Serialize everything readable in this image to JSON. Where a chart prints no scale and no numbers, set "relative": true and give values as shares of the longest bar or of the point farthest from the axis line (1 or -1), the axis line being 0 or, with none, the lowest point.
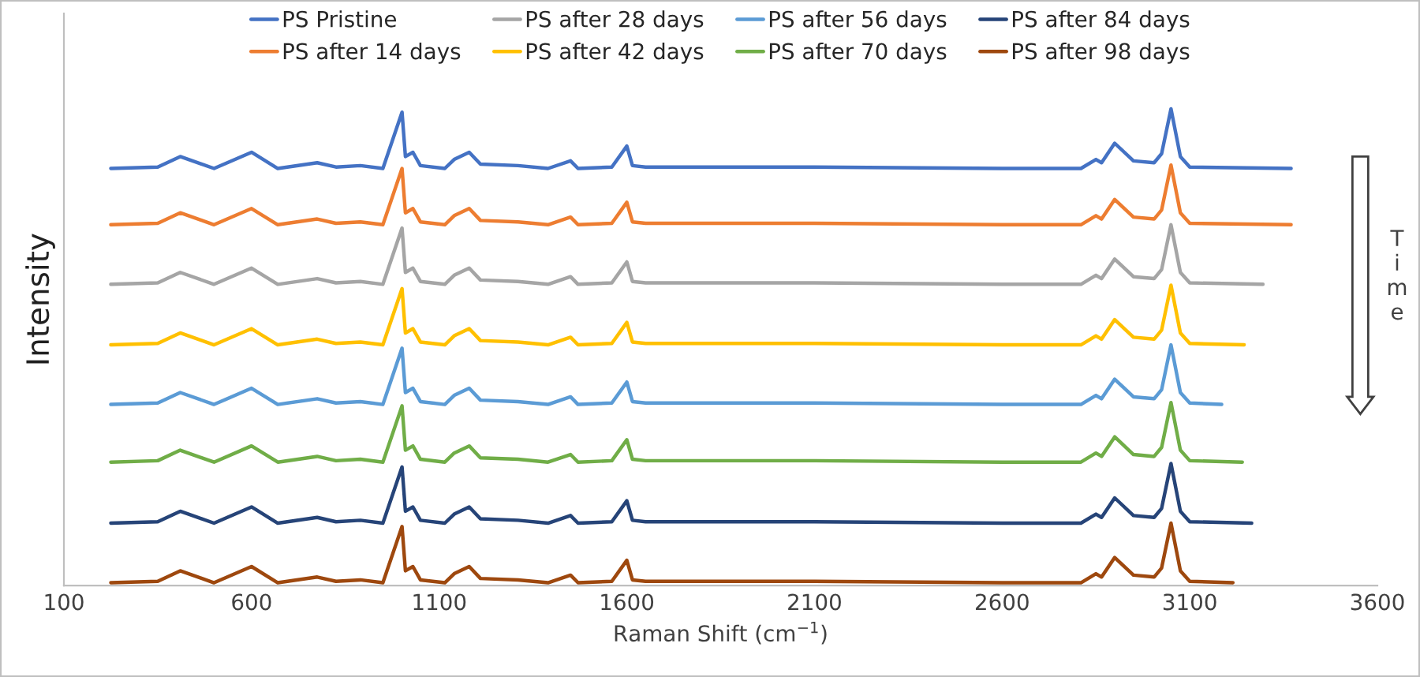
{
  "chart_data": {
    "type": "line",
    "relative": true,
    "xlabel": "Raman Shift (cm$^{−1}$)",
    "ylabel": "Intensity",
    "annotations": [
      "Time"
    ],
    "xlim": [
      100,
      3600
    ],
    "xticks": [
      100,
      600,
      1100,
      1600,
      2100,
      2600,
      3100,
      3600
    ],
    "grid": false,
    "legend": "top",
    "marker": "none",
    "line_style": "solid",
    "series": [
      {
        "name": "PS Pristine",
        "color": "#4472c4",
        "x": [
          225,
          350,
          410,
          500,
          600,
          670,
          775,
          825,
          890,
          950,
          1001,
          1010,
          1030,
          1050,
          1115,
          1140,
          1180,
          1210,
          1310,
          1390,
          1450,
          1470,
          1560,
          1600,
          1615,
          1650,
          2100,
          2600,
          2810,
          2850,
          2865,
          2900,
          2950,
          3005,
          3025,
          3050,
          3075,
          3100,
          3370
        ],
        "values": [
          0.875,
          0.878,
          0.9,
          0.875,
          0.909,
          0.875,
          0.887,
          0.878,
          0.881,
          0.875,
          0.993,
          0.9,
          0.909,
          0.881,
          0.875,
          0.894,
          0.909,
          0.884,
          0.881,
          0.875,
          0.891,
          0.875,
          0.878,
          0.922,
          0.881,
          0.878,
          0.878,
          0.875,
          0.875,
          0.894,
          0.887,
          0.928,
          0.891,
          0.887,
          0.906,
          1.0,
          0.9,
          0.878,
          0.875
        ]
      },
      {
        "name": "PS after 14 days",
        "color": "#ed7d31",
        "x": [
          225,
          350,
          410,
          500,
          600,
          670,
          775,
          825,
          890,
          950,
          1001,
          1010,
          1030,
          1050,
          1115,
          1140,
          1180,
          1210,
          1310,
          1390,
          1450,
          1470,
          1560,
          1600,
          1615,
          1650,
          2100,
          2600,
          2810,
          2850,
          2865,
          2900,
          2950,
          3005,
          3025,
          3050,
          3075,
          3100,
          3370
        ],
        "values": [
          0.757,
          0.76,
          0.782,
          0.757,
          0.791,
          0.757,
          0.769,
          0.76,
          0.763,
          0.757,
          0.875,
          0.782,
          0.791,
          0.763,
          0.757,
          0.776,
          0.791,
          0.766,
          0.763,
          0.757,
          0.773,
          0.757,
          0.76,
          0.804,
          0.763,
          0.76,
          0.76,
          0.757,
          0.757,
          0.776,
          0.769,
          0.81,
          0.773,
          0.769,
          0.788,
          0.882,
          0.782,
          0.76,
          0.757
        ]
      },
      {
        "name": "PS after 28 days",
        "color": "#a5a5a5",
        "x": [
          225,
          350,
          410,
          500,
          600,
          670,
          775,
          825,
          890,
          950,
          1001,
          1010,
          1030,
          1050,
          1115,
          1140,
          1180,
          1210,
          1310,
          1390,
          1450,
          1470,
          1560,
          1600,
          1615,
          1650,
          2100,
          2600,
          2810,
          2850,
          2865,
          2900,
          2950,
          3005,
          3025,
          3050,
          3075,
          3100,
          3295
        ],
        "values": [
          0.632,
          0.635,
          0.657,
          0.632,
          0.666,
          0.632,
          0.644,
          0.635,
          0.638,
          0.632,
          0.75,
          0.657,
          0.666,
          0.638,
          0.632,
          0.651,
          0.666,
          0.641,
          0.638,
          0.632,
          0.648,
          0.632,
          0.635,
          0.679,
          0.638,
          0.635,
          0.635,
          0.632,
          0.632,
          0.651,
          0.644,
          0.685,
          0.648,
          0.644,
          0.663,
          0.757,
          0.657,
          0.635,
          0.632
        ]
      },
      {
        "name": "PS after 42 days",
        "color": "#ffc000",
        "x": [
          225,
          350,
          410,
          500,
          600,
          670,
          775,
          825,
          890,
          950,
          1001,
          1010,
          1030,
          1050,
          1115,
          1140,
          1180,
          1210,
          1310,
          1390,
          1450,
          1470,
          1560,
          1600,
          1615,
          1650,
          2100,
          2600,
          2810,
          2850,
          2865,
          2900,
          2950,
          3005,
          3025,
          3050,
          3075,
          3100,
          3245
        ],
        "values": [
          0.505,
          0.508,
          0.53,
          0.505,
          0.539,
          0.505,
          0.517,
          0.508,
          0.511,
          0.505,
          0.623,
          0.53,
          0.539,
          0.511,
          0.505,
          0.524,
          0.539,
          0.514,
          0.511,
          0.505,
          0.521,
          0.505,
          0.508,
          0.552,
          0.511,
          0.508,
          0.508,
          0.505,
          0.505,
          0.524,
          0.517,
          0.558,
          0.521,
          0.517,
          0.536,
          0.63,
          0.53,
          0.508,
          0.505
        ]
      },
      {
        "name": "PS after 56 days",
        "color": "#5b9bd5",
        "x": [
          225,
          350,
          410,
          500,
          600,
          670,
          775,
          825,
          890,
          950,
          1001,
          1010,
          1030,
          1050,
          1115,
          1140,
          1180,
          1210,
          1310,
          1390,
          1450,
          1470,
          1560,
          1600,
          1615,
          1650,
          2100,
          2600,
          2810,
          2850,
          2865,
          2900,
          2950,
          3005,
          3025,
          3050,
          3075,
          3100,
          3185
        ],
        "values": [
          0.38,
          0.383,
          0.405,
          0.38,
          0.414,
          0.38,
          0.392,
          0.383,
          0.386,
          0.38,
          0.498,
          0.405,
          0.414,
          0.386,
          0.38,
          0.399,
          0.414,
          0.389,
          0.386,
          0.38,
          0.396,
          0.38,
          0.383,
          0.427,
          0.386,
          0.383,
          0.383,
          0.38,
          0.38,
          0.399,
          0.392,
          0.433,
          0.396,
          0.392,
          0.411,
          0.505,
          0.405,
          0.383,
          0.38
        ]
      },
      {
        "name": "PS after 70 days",
        "color": "#70ad47",
        "x": [
          225,
          350,
          410,
          500,
          600,
          670,
          775,
          825,
          890,
          950,
          1001,
          1010,
          1030,
          1050,
          1115,
          1140,
          1180,
          1210,
          1310,
          1390,
          1450,
          1470,
          1560,
          1600,
          1615,
          1650,
          2100,
          2600,
          2810,
          2850,
          2865,
          2900,
          2950,
          3005,
          3025,
          3050,
          3075,
          3100,
          3240
        ],
        "values": [
          0.259,
          0.262,
          0.284,
          0.259,
          0.293,
          0.259,
          0.271,
          0.262,
          0.265,
          0.259,
          0.377,
          0.284,
          0.293,
          0.265,
          0.259,
          0.278,
          0.293,
          0.268,
          0.265,
          0.259,
          0.275,
          0.259,
          0.262,
          0.306,
          0.265,
          0.262,
          0.262,
          0.259,
          0.259,
          0.278,
          0.271,
          0.312,
          0.275,
          0.271,
          0.29,
          0.384,
          0.284,
          0.262,
          0.259
        ]
      },
      {
        "name": "PS after 84 days",
        "color": "#264478",
        "x": [
          225,
          350,
          410,
          500,
          600,
          670,
          775,
          825,
          890,
          950,
          1001,
          1010,
          1030,
          1050,
          1115,
          1140,
          1180,
          1210,
          1310,
          1390,
          1450,
          1470,
          1560,
          1600,
          1615,
          1650,
          2100,
          2600,
          2810,
          2850,
          2865,
          2900,
          2950,
          3005,
          3025,
          3050,
          3075,
          3100,
          3265
        ],
        "values": [
          0.131,
          0.134,
          0.156,
          0.131,
          0.165,
          0.131,
          0.143,
          0.134,
          0.137,
          0.131,
          0.249,
          0.156,
          0.165,
          0.137,
          0.131,
          0.15,
          0.165,
          0.14,
          0.137,
          0.131,
          0.147,
          0.131,
          0.134,
          0.178,
          0.137,
          0.134,
          0.134,
          0.131,
          0.131,
          0.15,
          0.143,
          0.184,
          0.147,
          0.143,
          0.162,
          0.256,
          0.156,
          0.134,
          0.131
        ]
      },
      {
        "name": "PS after 98 days",
        "color": "#9e480e",
        "x": [
          225,
          350,
          410,
          500,
          600,
          670,
          775,
          825,
          890,
          950,
          1001,
          1010,
          1030,
          1050,
          1115,
          1140,
          1180,
          1210,
          1310,
          1390,
          1450,
          1470,
          1560,
          1600,
          1615,
          1650,
          2100,
          2600,
          2810,
          2850,
          2865,
          2900,
          2950,
          3005,
          3025,
          3050,
          3075,
          3100,
          3215
        ],
        "values": [
          0.006,
          0.009,
          0.031,
          0.006,
          0.04,
          0.006,
          0.018,
          0.009,
          0.012,
          0.006,
          0.124,
          0.031,
          0.04,
          0.012,
          0.006,
          0.025,
          0.04,
          0.015,
          0.012,
          0.006,
          0.022,
          0.006,
          0.009,
          0.053,
          0.012,
          0.009,
          0.009,
          0.006,
          0.006,
          0.025,
          0.018,
          0.059,
          0.022,
          0.018,
          0.037,
          0.131,
          0.031,
          0.009,
          0.006
        ]
      }
    ]
  }
}
